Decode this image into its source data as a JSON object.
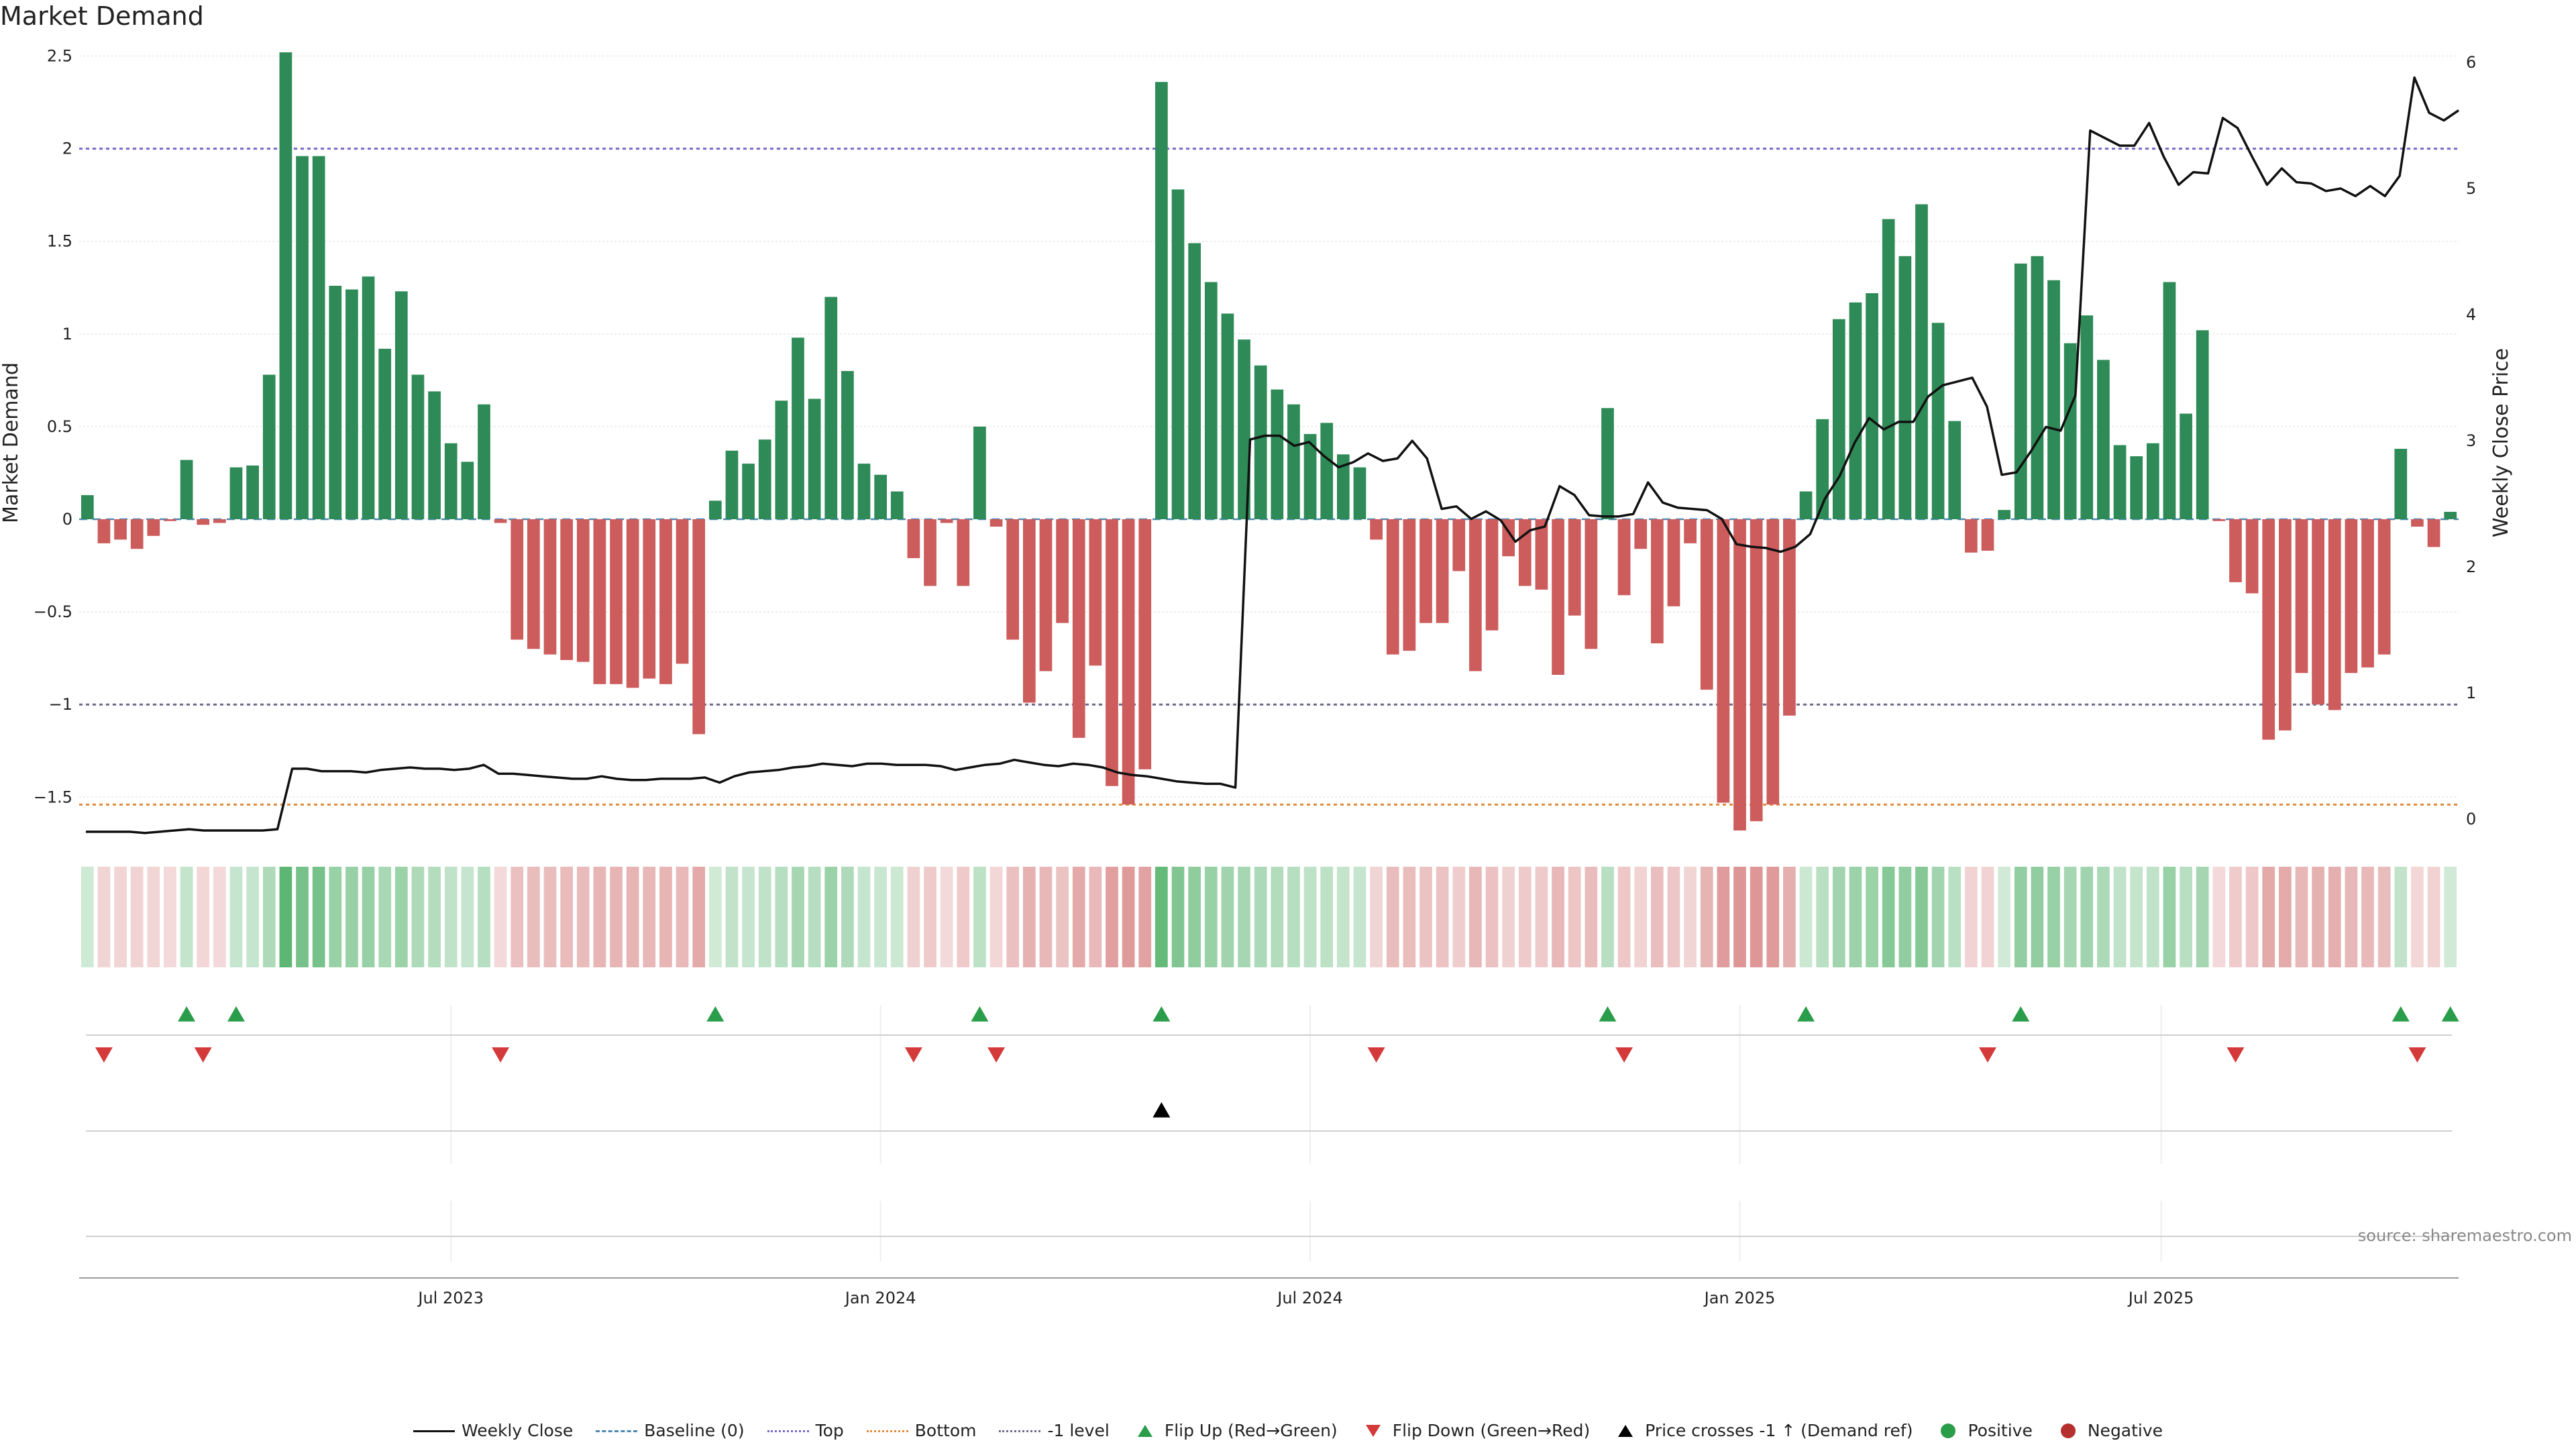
{
  "title": "Market Demand",
  "source": "source: sharemaestro.com",
  "chart_data": {
    "type": "bar",
    "title": "Market Demand",
    "ylabel": "Market Demand",
    "y2label": "Weekly Close Price",
    "ylim": [
      -1.68,
      2.52
    ],
    "y2lim": [
      -0.09,
      6.08
    ],
    "yticks": [
      "2.5",
      "2",
      "1.5",
      "1",
      "0.5",
      "0",
      "−0.5",
      "−1",
      "−1.5"
    ],
    "ytick_values": [
      2.5,
      2,
      1.5,
      1,
      0.5,
      0,
      -0.5,
      -1,
      -1.5
    ],
    "y2ticks": [
      "6",
      "5",
      "4",
      "3",
      "2",
      "1",
      "0"
    ],
    "y2tick_values": [
      6,
      5,
      4,
      3,
      2,
      1,
      0
    ],
    "xticks": [
      "Jul 2023",
      "Jan 2024",
      "Jul 2024",
      "Jan 2025",
      "Jul 2025"
    ],
    "xtick_weeks": [
      22,
      48,
      74,
      100,
      125.5
    ],
    "reference_lines": {
      "top": 2.0,
      "bottom": -1.54,
      "minus_one": -1.0,
      "baseline": 0.0
    },
    "demand": [
      0.13,
      -0.13,
      -0.11,
      -0.16,
      -0.09,
      -0.01,
      0.32,
      -0.03,
      -0.02,
      0.28,
      0.29,
      0.78,
      2.52,
      1.96,
      1.96,
      1.26,
      1.24,
      1.31,
      0.92,
      1.23,
      0.78,
      0.69,
      0.41,
      0.31,
      0.62,
      -0.02,
      -0.65,
      -0.7,
      -0.73,
      -0.76,
      -0.77,
      -0.89,
      -0.89,
      -0.91,
      -0.86,
      -0.89,
      -0.78,
      -1.16,
      0.1,
      0.37,
      0.3,
      0.43,
      0.64,
      0.98,
      0.65,
      1.2,
      0.8,
      0.3,
      0.24,
      0.15,
      -0.21,
      -0.36,
      -0.02,
      -0.36,
      0.5,
      -0.04,
      -0.65,
      -0.99,
      -0.82,
      -0.56,
      -1.18,
      -0.79,
      -1.44,
      -1.54,
      -1.35,
      2.36,
      1.78,
      1.49,
      1.28,
      1.11,
      0.97,
      0.83,
      0.7,
      0.62,
      0.46,
      0.52,
      0.35,
      0.28,
      -0.11,
      -0.73,
      -0.71,
      -0.56,
      -0.56,
      -0.28,
      -0.82,
      -0.6,
      -0.2,
      -0.36,
      -0.38,
      -0.84,
      -0.52,
      -0.7,
      0.6,
      -0.41,
      -0.16,
      -0.67,
      -0.47,
      -0.13,
      -0.92,
      -1.53,
      -1.68,
      -1.63,
      -1.54,
      -1.06,
      0.15,
      0.54,
      1.08,
      1.17,
      1.22,
      1.62,
      1.42,
      1.7,
      1.06,
      0.53,
      -0.18,
      -0.17,
      0.05,
      1.38,
      1.42,
      1.29,
      0.95,
      1.1,
      0.86,
      0.4,
      0.34,
      0.41,
      1.28,
      0.57,
      1.02,
      -0.01,
      -0.34,
      -0.4,
      -1.19,
      -1.14,
      -0.83,
      -1.0,
      -1.03,
      -0.83,
      -0.8,
      -0.73,
      0.38,
      -0.04,
      -0.15,
      0.04
    ],
    "weekly_close": [
      -0.1,
      -0.1,
      -0.1,
      -0.1,
      -0.11,
      -0.1,
      -0.09,
      -0.08,
      -0.09,
      -0.09,
      -0.09,
      -0.09,
      -0.09,
      -0.08,
      0.4,
      0.4,
      0.38,
      0.38,
      0.38,
      0.37,
      0.39,
      0.4,
      0.41,
      0.4,
      0.4,
      0.39,
      0.4,
      0.43,
      0.36,
      0.36,
      0.35,
      0.34,
      0.33,
      0.32,
      0.32,
      0.34,
      0.32,
      0.31,
      0.31,
      0.32,
      0.32,
      0.32,
      0.33,
      0.29,
      0.34,
      0.37,
      0.38,
      0.39,
      0.41,
      0.42,
      0.44,
      0.43,
      0.42,
      0.44,
      0.44,
      0.43,
      0.43,
      0.43,
      0.42,
      0.39,
      0.41,
      0.43,
      0.44,
      0.47,
      0.45,
      0.43,
      0.42,
      0.44,
      0.43,
      0.41,
      0.37,
      0.35,
      0.34,
      0.32,
      0.3,
      0.29,
      0.28,
      0.28,
      0.25,
      3.01,
      3.04,
      3.04,
      2.96,
      2.99,
      2.88,
      2.79,
      2.83,
      2.9,
      2.84,
      2.86,
      3.0,
      2.86,
      2.46,
      2.48,
      2.38,
      2.44,
      2.37,
      2.2,
      2.29,
      2.32,
      2.64,
      2.57,
      2.41,
      2.4,
      2.4,
      2.42,
      2.67,
      2.51,
      2.47,
      2.46,
      2.45,
      2.38,
      2.18,
      2.16,
      2.15,
      2.12,
      2.16,
      2.26,
      2.54,
      2.72,
      2.98,
      3.18,
      3.09,
      3.15,
      3.15,
      3.35,
      3.44,
      3.47,
      3.5,
      3.27,
      2.73,
      2.75,
      2.92,
      3.11,
      3.08,
      3.36,
      5.46,
      5.4,
      5.34,
      5.34,
      5.52,
      5.25,
      5.03,
      5.13,
      5.12,
      5.56,
      5.48,
      5.25,
      5.03,
      5.16,
      5.05,
      5.04,
      4.98,
      5.0,
      4.94,
      5.02,
      4.94,
      5.1,
      5.88,
      5.6,
      5.54,
      5.62
    ],
    "price_cross_week": 65,
    "flip_up_weeks": [
      6,
      9,
      38,
      54,
      65,
      92,
      104,
      117,
      140,
      143
    ],
    "flip_down_weeks": [
      1,
      7,
      25,
      50,
      55,
      78,
      93,
      115,
      130,
      141
    ]
  },
  "legend": {
    "items": [
      {
        "label": "Weekly Close",
        "kind": "line-solid",
        "color": "#111111"
      },
      {
        "label": "Baseline (0)",
        "kind": "line-dash",
        "color": "#4d88b5"
      },
      {
        "label": "Top",
        "kind": "line-dot",
        "color": "#7b68c8"
      },
      {
        "label": "Bottom",
        "kind": "line-dot",
        "color": "#e08a3c"
      },
      {
        "label": "-1 level",
        "kind": "line-dot",
        "color": "#6a6a8a"
      },
      {
        "label": "Flip Up (Red→Green)",
        "kind": "tri-up",
        "color": "#2a9d4a"
      },
      {
        "label": "Flip Down (Green→Red)",
        "kind": "tri-down",
        "color": "#d43a3a"
      },
      {
        "label": "Price crosses -1 ↑ (Demand ref)",
        "kind": "tri-up",
        "color": "#000000"
      },
      {
        "label": "Positive",
        "kind": "dot",
        "color": "#2a9d4a"
      },
      {
        "label": "Negative",
        "kind": "dot",
        "color": "#b52f2f"
      }
    ]
  },
  "colors": {
    "positive": "#2e8b57",
    "negative": "#cd5c5c",
    "price": "#111111",
    "heat_pos": "#3aa655",
    "heat_neg": "#c95454"
  }
}
